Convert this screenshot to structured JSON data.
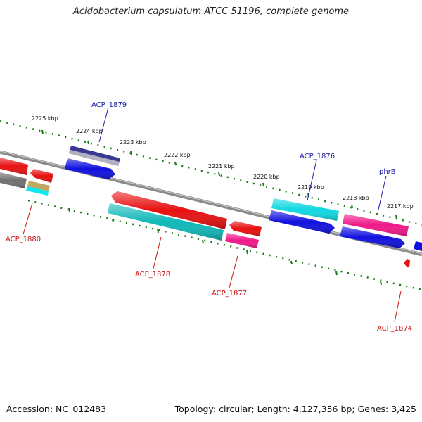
{
  "title": "Acidobacterium capsulatum ATCC 51196, complete genome",
  "footer": {
    "accession": "Accession: NC_012483",
    "topology": "Topology: circular; Length: 4,127,356 bp; Genes: 3,425"
  },
  "scale_labels": [
    "2225 kbp",
    "2224 kbp",
    "2223 kbp",
    "2222 kbp",
    "2221 kbp",
    "2220 kbp",
    "2219 kbp",
    "2218 kbp",
    "2217 kbp"
  ],
  "gene_labels": {
    "acp_1879": "ACP_1879",
    "acp_1876": "ACP_1876",
    "phrb": "phrB",
    "acp_1880": "ACP_1880",
    "acp_1878": "ACP_1878",
    "acp_1877": "ACP_1877",
    "acp_1874": "ACP_1874"
  },
  "colors": {
    "red": "#e81010",
    "blue": "#1010e0",
    "cyan": "#10d8e0",
    "teal": "#10b8b8",
    "magenta": "#f01888",
    "navy": "#3a3890",
    "gray": "#707070",
    "tan": "#c0a860",
    "backbone": "#8a8a8a",
    "tick": "#1a7a1a"
  }
}
